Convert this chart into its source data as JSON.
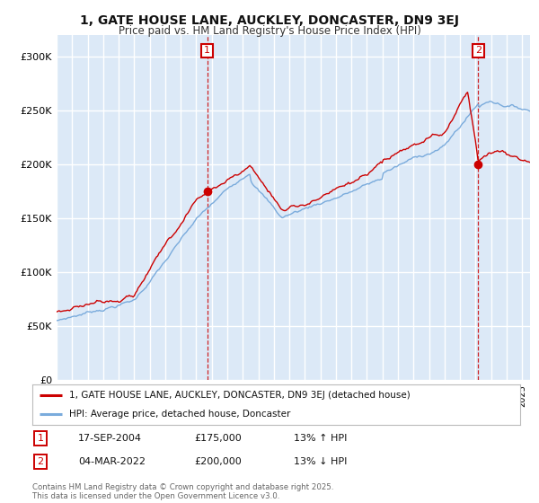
{
  "title": "1, GATE HOUSE LANE, AUCKLEY, DONCASTER, DN9 3EJ",
  "subtitle": "Price paid vs. HM Land Registry's House Price Index (HPI)",
  "legend_line1": "1, GATE HOUSE LANE, AUCKLEY, DONCASTER, DN9 3EJ (detached house)",
  "legend_line2": "HPI: Average price, detached house, Doncaster",
  "transaction1_label": "1",
  "transaction1_date": "17-SEP-2004",
  "transaction1_price": "£175,000",
  "transaction1_hpi": "13% ↑ HPI",
  "transaction2_label": "2",
  "transaction2_date": "04-MAR-2022",
  "transaction2_price": "£200,000",
  "transaction2_hpi": "13% ↓ HPI",
  "footer": "Contains HM Land Registry data © Crown copyright and database right 2025.\nThis data is licensed under the Open Government Licence v3.0.",
  "line1_color": "#cc0000",
  "line2_color": "#7aabdc",
  "vline1_color": "#cc0000",
  "vline2_color": "#cc0000",
  "background_color": "#dce9f7",
  "plot_bg_color": "#dce9f7",
  "grid_color": "#ffffff",
  "ylim": [
    0,
    320000
  ],
  "yticks": [
    0,
    50000,
    100000,
    150000,
    200000,
    250000,
    300000
  ],
  "ytick_labels": [
    "£0",
    "£50K",
    "£100K",
    "£150K",
    "£200K",
    "£250K",
    "£300K"
  ],
  "transaction1_x": 2004.71,
  "transaction1_y": 175000,
  "transaction2_x": 2022.17,
  "transaction2_y": 200000,
  "xmin": 1995,
  "xmax": 2025.5
}
